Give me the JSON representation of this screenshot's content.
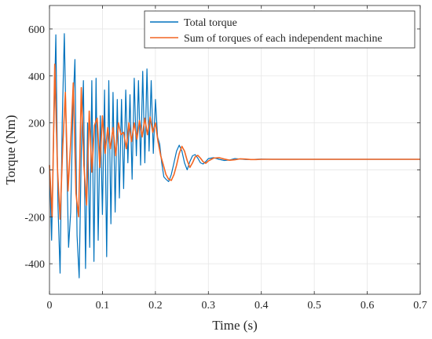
{
  "chart_data": {
    "type": "line",
    "title": "",
    "xlabel": "Time (s)",
    "ylabel": "Torque (Nm)",
    "xlim": [
      0,
      0.7
    ],
    "ylim": [
      -530,
      700
    ],
    "xticks": [
      0,
      0.1,
      0.2,
      0.3,
      0.4,
      0.5,
      0.6,
      0.7
    ],
    "yticks": [
      -400,
      -200,
      0,
      200,
      400,
      600
    ],
    "grid": true,
    "legend_position": "top-right",
    "series": [
      {
        "name": "Total torque",
        "color": "#0072BD",
        "x": [
          0,
          0.004,
          0.008,
          0.012,
          0.016,
          0.02,
          0.024,
          0.028,
          0.032,
          0.036,
          0.04,
          0.044,
          0.048,
          0.052,
          0.056,
          0.06,
          0.064,
          0.068,
          0.072,
          0.076,
          0.08,
          0.084,
          0.088,
          0.092,
          0.096,
          0.1,
          0.104,
          0.108,
          0.112,
          0.116,
          0.12,
          0.124,
          0.128,
          0.132,
          0.136,
          0.14,
          0.144,
          0.148,
          0.152,
          0.156,
          0.16,
          0.164,
          0.168,
          0.172,
          0.176,
          0.18,
          0.184,
          0.188,
          0.192,
          0.196,
          0.2,
          0.204,
          0.208,
          0.212,
          0.216,
          0.22,
          0.225,
          0.23,
          0.235,
          0.24,
          0.245,
          0.25,
          0.255,
          0.26,
          0.265,
          0.27,
          0.275,
          0.28,
          0.285,
          0.29,
          0.295,
          0.3,
          0.31,
          0.32,
          0.33,
          0.34,
          0.35,
          0.36,
          0.37,
          0.38,
          0.39,
          0.4,
          0.42,
          0.44,
          0.46,
          0.5,
          0.55,
          0.6,
          0.65,
          0.7
        ],
        "y": [
          20,
          -300,
          150,
          575,
          -150,
          -440,
          200,
          580,
          100,
          -330,
          -180,
          250,
          470,
          -280,
          -460,
          80,
          380,
          -420,
          200,
          -330,
          380,
          -390,
          390,
          -300,
          230,
          -190,
          340,
          -370,
          380,
          -230,
          330,
          -180,
          300,
          -120,
          300,
          -80,
          340,
          30,
          320,
          -40,
          390,
          60,
          380,
          20,
          420,
          30,
          430,
          80,
          380,
          70,
          300,
          140,
          110,
          30,
          -30,
          -40,
          -50,
          -20,
          30,
          80,
          105,
          80,
          30,
          0,
          35,
          60,
          65,
          50,
          30,
          25,
          35,
          48,
          52,
          45,
          40,
          42,
          48,
          46,
          44,
          44,
          45,
          46,
          45,
          45,
          45,
          45,
          45,
          45,
          45,
          45
        ]
      },
      {
        "name": "Sum of torques of each independent machine",
        "color": "#F26522",
        "x": [
          0,
          0.005,
          0.01,
          0.015,
          0.02,
          0.025,
          0.03,
          0.035,
          0.04,
          0.045,
          0.05,
          0.055,
          0.06,
          0.065,
          0.07,
          0.075,
          0.08,
          0.085,
          0.09,
          0.095,
          0.1,
          0.105,
          0.11,
          0.115,
          0.12,
          0.125,
          0.13,
          0.135,
          0.14,
          0.145,
          0.15,
          0.155,
          0.16,
          0.165,
          0.17,
          0.175,
          0.18,
          0.185,
          0.19,
          0.195,
          0.2,
          0.205,
          0.21,
          0.215,
          0.22,
          0.225,
          0.23,
          0.235,
          0.24,
          0.245,
          0.25,
          0.255,
          0.26,
          0.265,
          0.27,
          0.275,
          0.28,
          0.285,
          0.29,
          0.295,
          0.3,
          0.31,
          0.32,
          0.33,
          0.34,
          0.35,
          0.36,
          0.37,
          0.38,
          0.39,
          0.4,
          0.42,
          0.45,
          0.5,
          0.55,
          0.6,
          0.65,
          0.7
        ],
        "y": [
          20,
          -200,
          450,
          10,
          -210,
          100,
          330,
          -90,
          120,
          370,
          -100,
          -200,
          350,
          20,
          -150,
          250,
          -10,
          190,
          220,
          10,
          230,
          70,
          180,
          90,
          180,
          60,
          200,
          150,
          160,
          90,
          200,
          120,
          200,
          130,
          210,
          140,
          220,
          150,
          225,
          160,
          200,
          120,
          60,
          20,
          -20,
          -40,
          -45,
          -20,
          20,
          70,
          100,
          80,
          40,
          10,
          30,
          55,
          62,
          50,
          35,
          28,
          38,
          50,
          52,
          46,
          41,
          43,
          47,
          46,
          44,
          44,
          45,
          45,
          45,
          45,
          45,
          45,
          45,
          45
        ]
      }
    ]
  }
}
